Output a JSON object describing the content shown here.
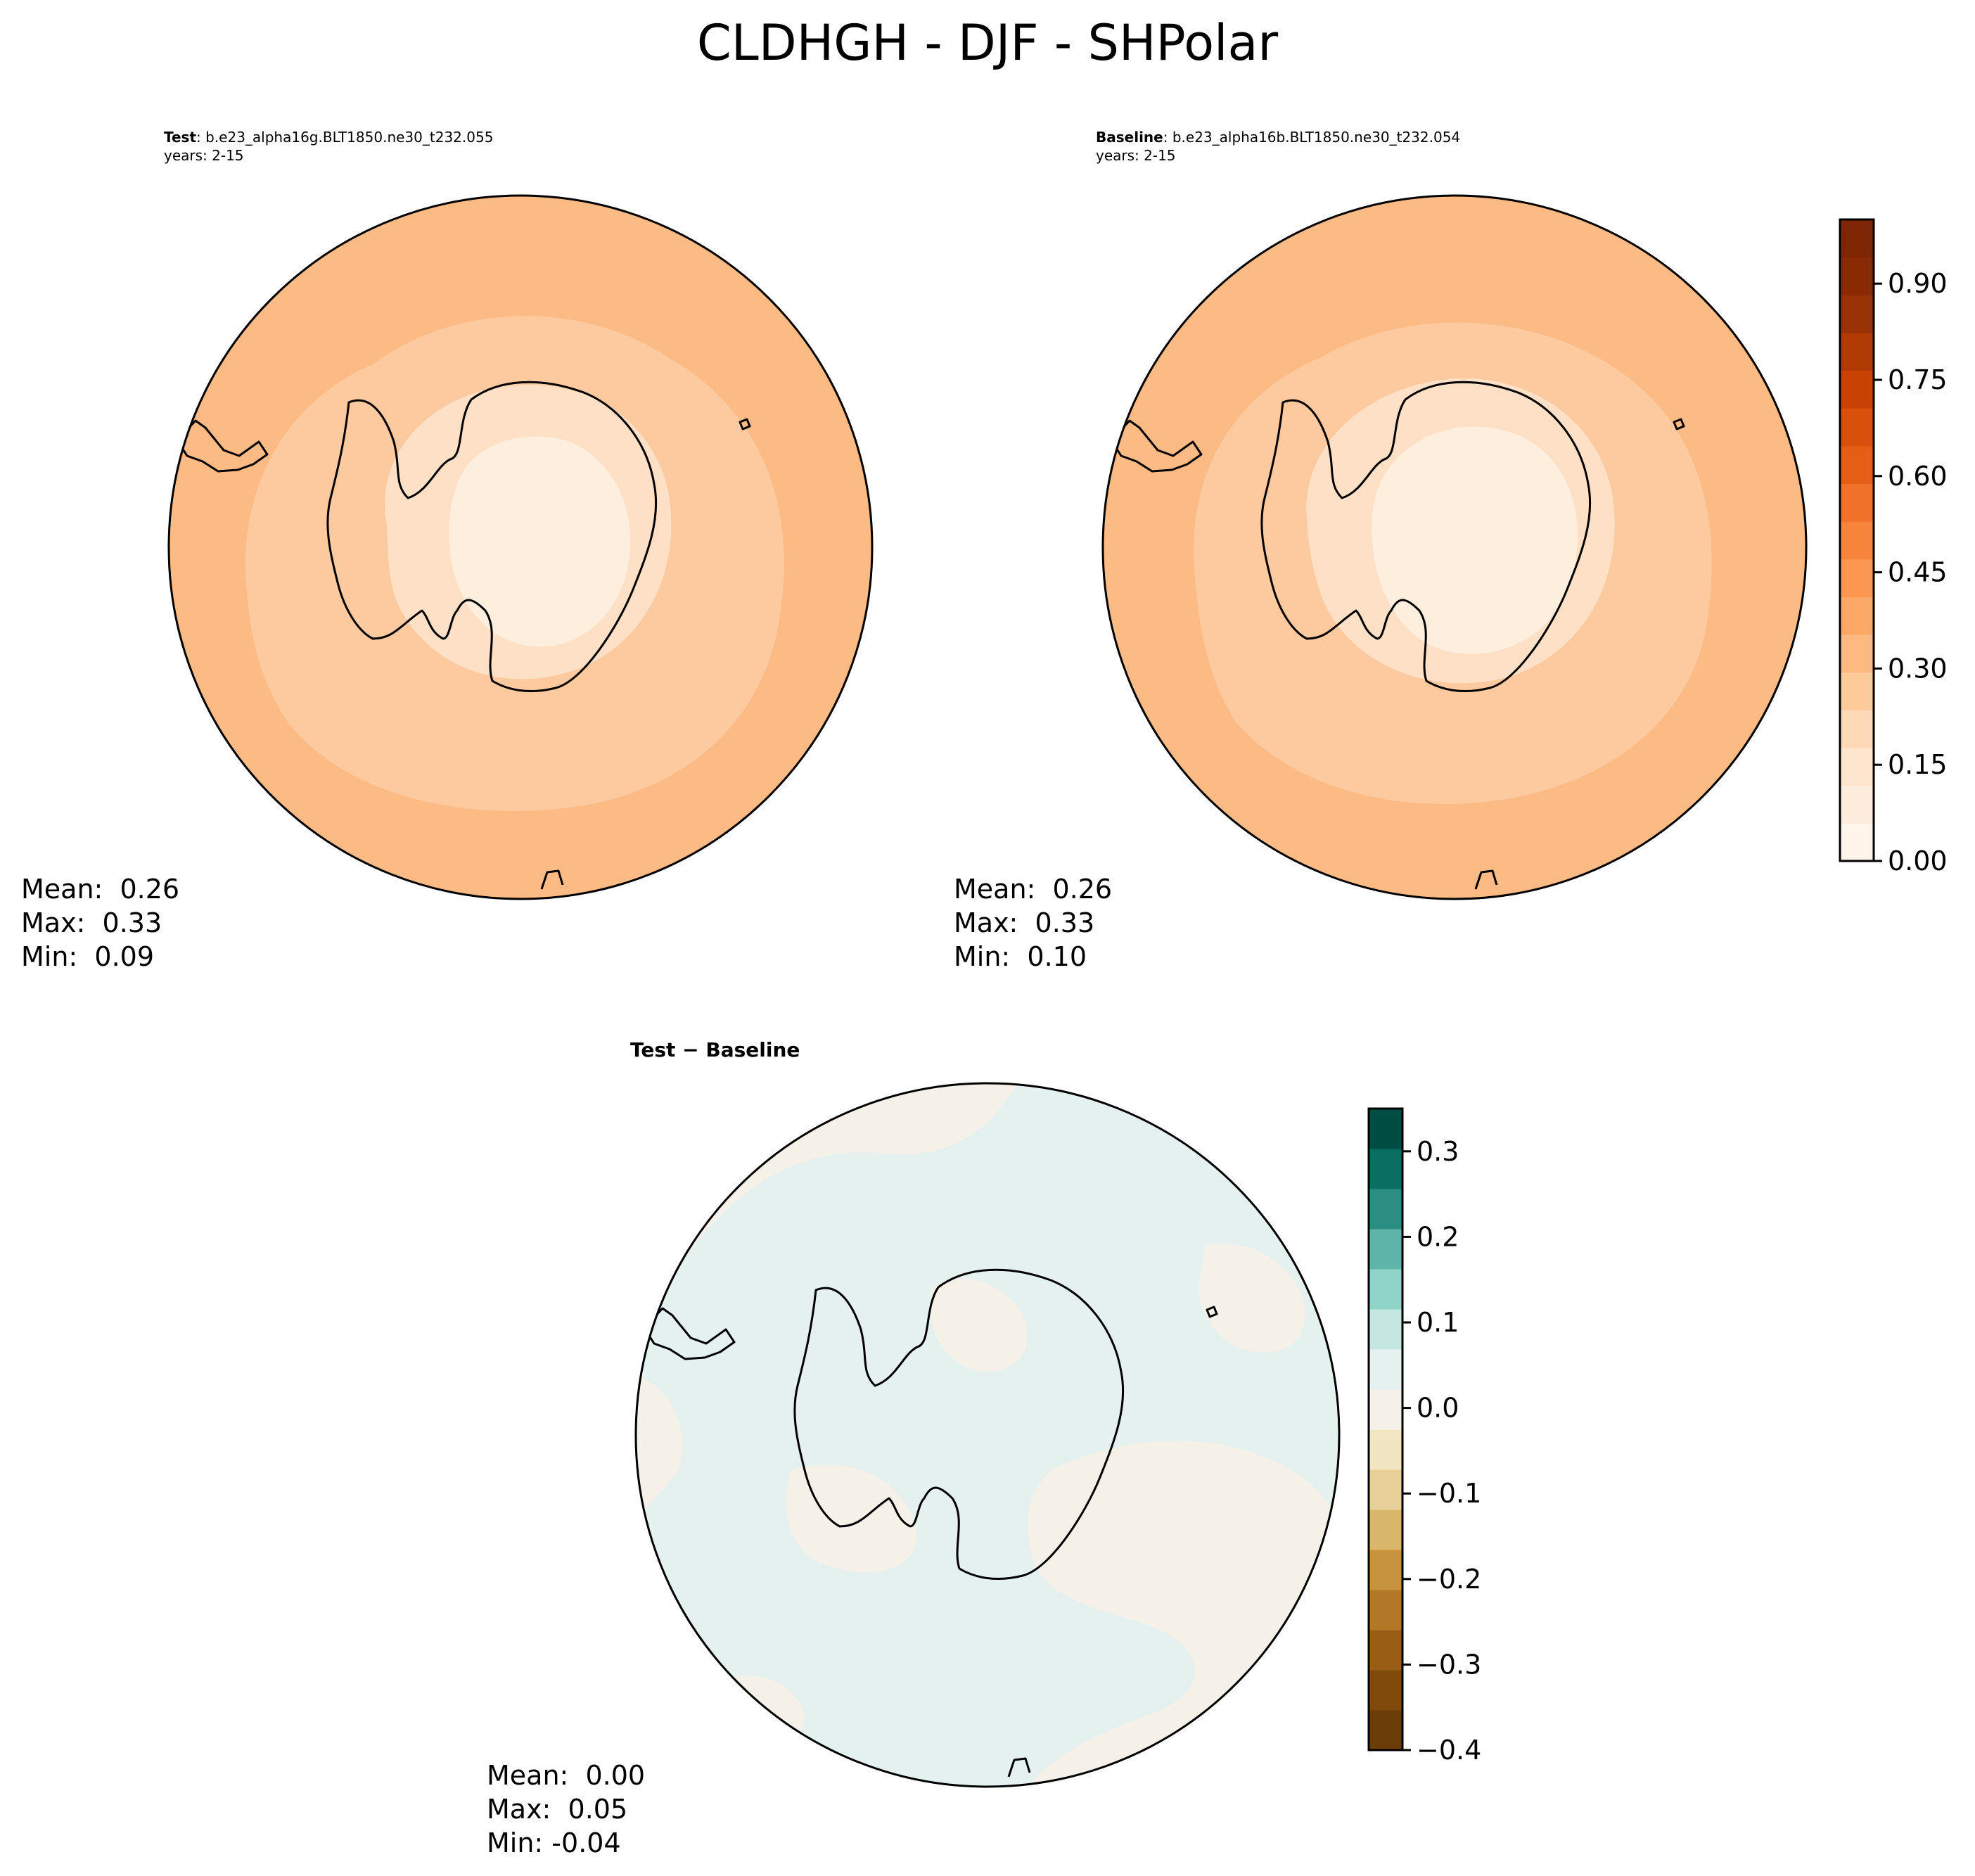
{
  "figure": {
    "title": "CLDHGH - DJF - SHPolar"
  },
  "panels": {
    "test": {
      "label": "Test",
      "case": ": b.e23_alpha16g.BLT1850.ne30_t232.055",
      "years": "years: 2-15",
      "stats": {
        "mean": "Mean:  0.26",
        "max": "Max:  0.33",
        "min": "Min:  0.09"
      }
    },
    "baseline": {
      "label": "Baseline",
      "case": ": b.e23_alpha16b.BLT1850.ne30_t232.054",
      "years": "years: 2-15",
      "stats": {
        "mean": "Mean:  0.26",
        "max": "Max:  0.33",
        "min": "Min:  0.10"
      }
    },
    "diff": {
      "label": "Test − Baseline",
      "stats": {
        "mean": "Mean:  0.00",
        "max": "Max:  0.05",
        "min": "Min: -0.04"
      }
    }
  },
  "colorbars": {
    "main": {
      "range": [
        0.0,
        1.0
      ],
      "ticks": [
        "0.00",
        "0.15",
        "0.30",
        "0.45",
        "0.60",
        "0.75",
        "0.90"
      ],
      "tick_values": [
        0.0,
        0.15,
        0.3,
        0.45,
        0.6,
        0.75,
        0.9
      ],
      "colors": [
        "#fff5eb",
        "#feeddc",
        "#fee6ce",
        "#fdd9b5",
        "#fdcb9a",
        "#fdb97f",
        "#fda866",
        "#fd9752",
        "#f8843c",
        "#f0712a",
        "#e65e16",
        "#d9500c",
        "#c94203",
        "#b23a03",
        "#993204",
        "#8a2a05",
        "#7f2704"
      ]
    },
    "diff": {
      "range": [
        -0.4,
        0.35
      ],
      "ticks": [
        "−0.4",
        "−0.3",
        "−0.2",
        "−0.1",
        "0.0",
        "0.1",
        "0.2",
        "0.3"
      ],
      "tick_values": [
        -0.4,
        -0.3,
        -0.2,
        -0.1,
        0.0,
        0.1,
        0.2,
        0.3
      ],
      "colors": [
        "#6b3e07",
        "#804a0a",
        "#9a5d15",
        "#b27828",
        "#c7933f",
        "#d8b66a",
        "#e8d198",
        "#f2e6c2",
        "#f5f1e8",
        "#e4f1ef",
        "#c4e7e1",
        "#90d4c9",
        "#5fb4a9",
        "#2c8d83",
        "#0b6e63",
        "#004d43"
      ]
    }
  },
  "fields": {
    "main_colors": {
      "outer": "#fcba85",
      "mid": "#fdc99e",
      "inner": "#fde0c5",
      "center": "#feeede"
    },
    "diff_colors": {
      "neutral_pos": "#e4f1ef",
      "neutral_neg": "#f5f1e8"
    }
  }
}
